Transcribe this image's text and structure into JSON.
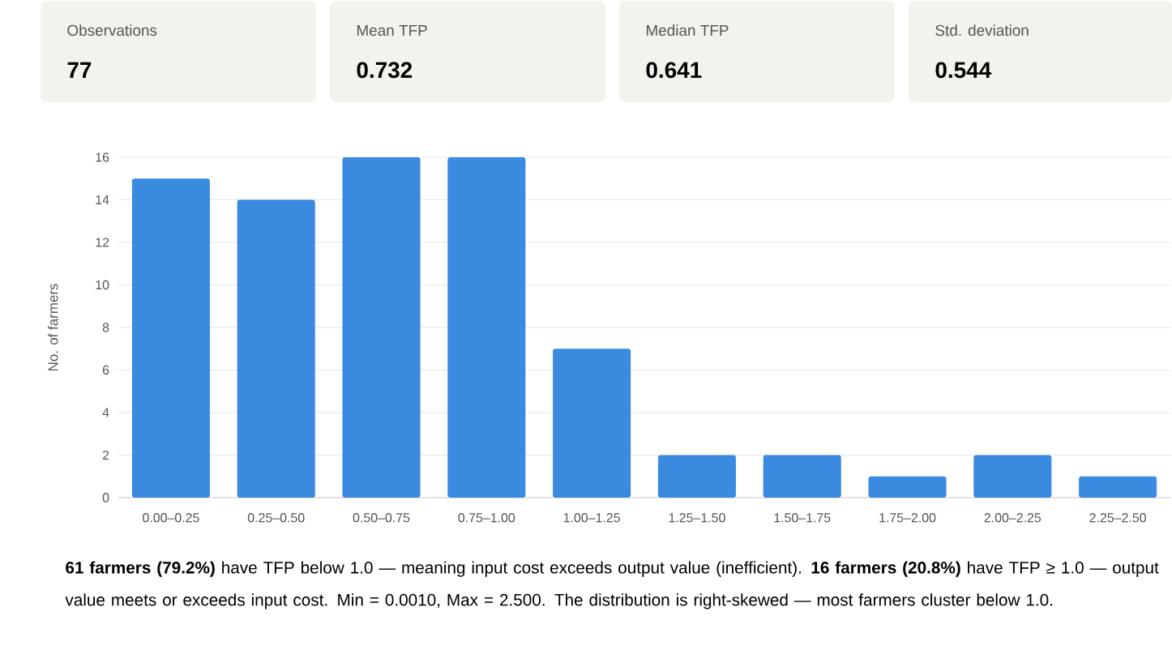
{
  "chart_data": [
    {
      "type": "other",
      "annotations": [
        "Observations",
        "77",
        "Mean TFP",
        "0.732",
        "Median TFP",
        "0.641",
        "Std. deviation",
        "0.544"
      ]
    },
    {
      "type": "bar",
      "categories": [
        "0.00–0.25",
        "0.25–0.50",
        "0.50–0.75",
        "0.75–1.00",
        "1.00–1.25",
        "1.25–1.50",
        "1.50–1.75",
        "1.75–2.00",
        "2.00–2.25",
        "2.25–2.50"
      ],
      "values": [
        15,
        14,
        16,
        16,
        7,
        2,
        2,
        1,
        2,
        1
      ],
      "color": "#3a8ae0",
      "ylabel": "No. of farmers",
      "ylim": [
        0,
        16
      ],
      "yticks": [
        0,
        2,
        4,
        6,
        8,
        10,
        12,
        14,
        16
      ],
      "grid": "y",
      "annotations": [
        "**61 farmers (79.2%)** have TFP below 1.0 — meaning input cost exceeds output value (inefficient). **16 farmers (20.8%)** have TFP ≥ 1.0 — output value meets or exceeds input cost. Min = 0.0010, Max = 2.500. The distribution is right-skewed — most farmers cluster below 1.0."
      ]
    }
  ]
}
